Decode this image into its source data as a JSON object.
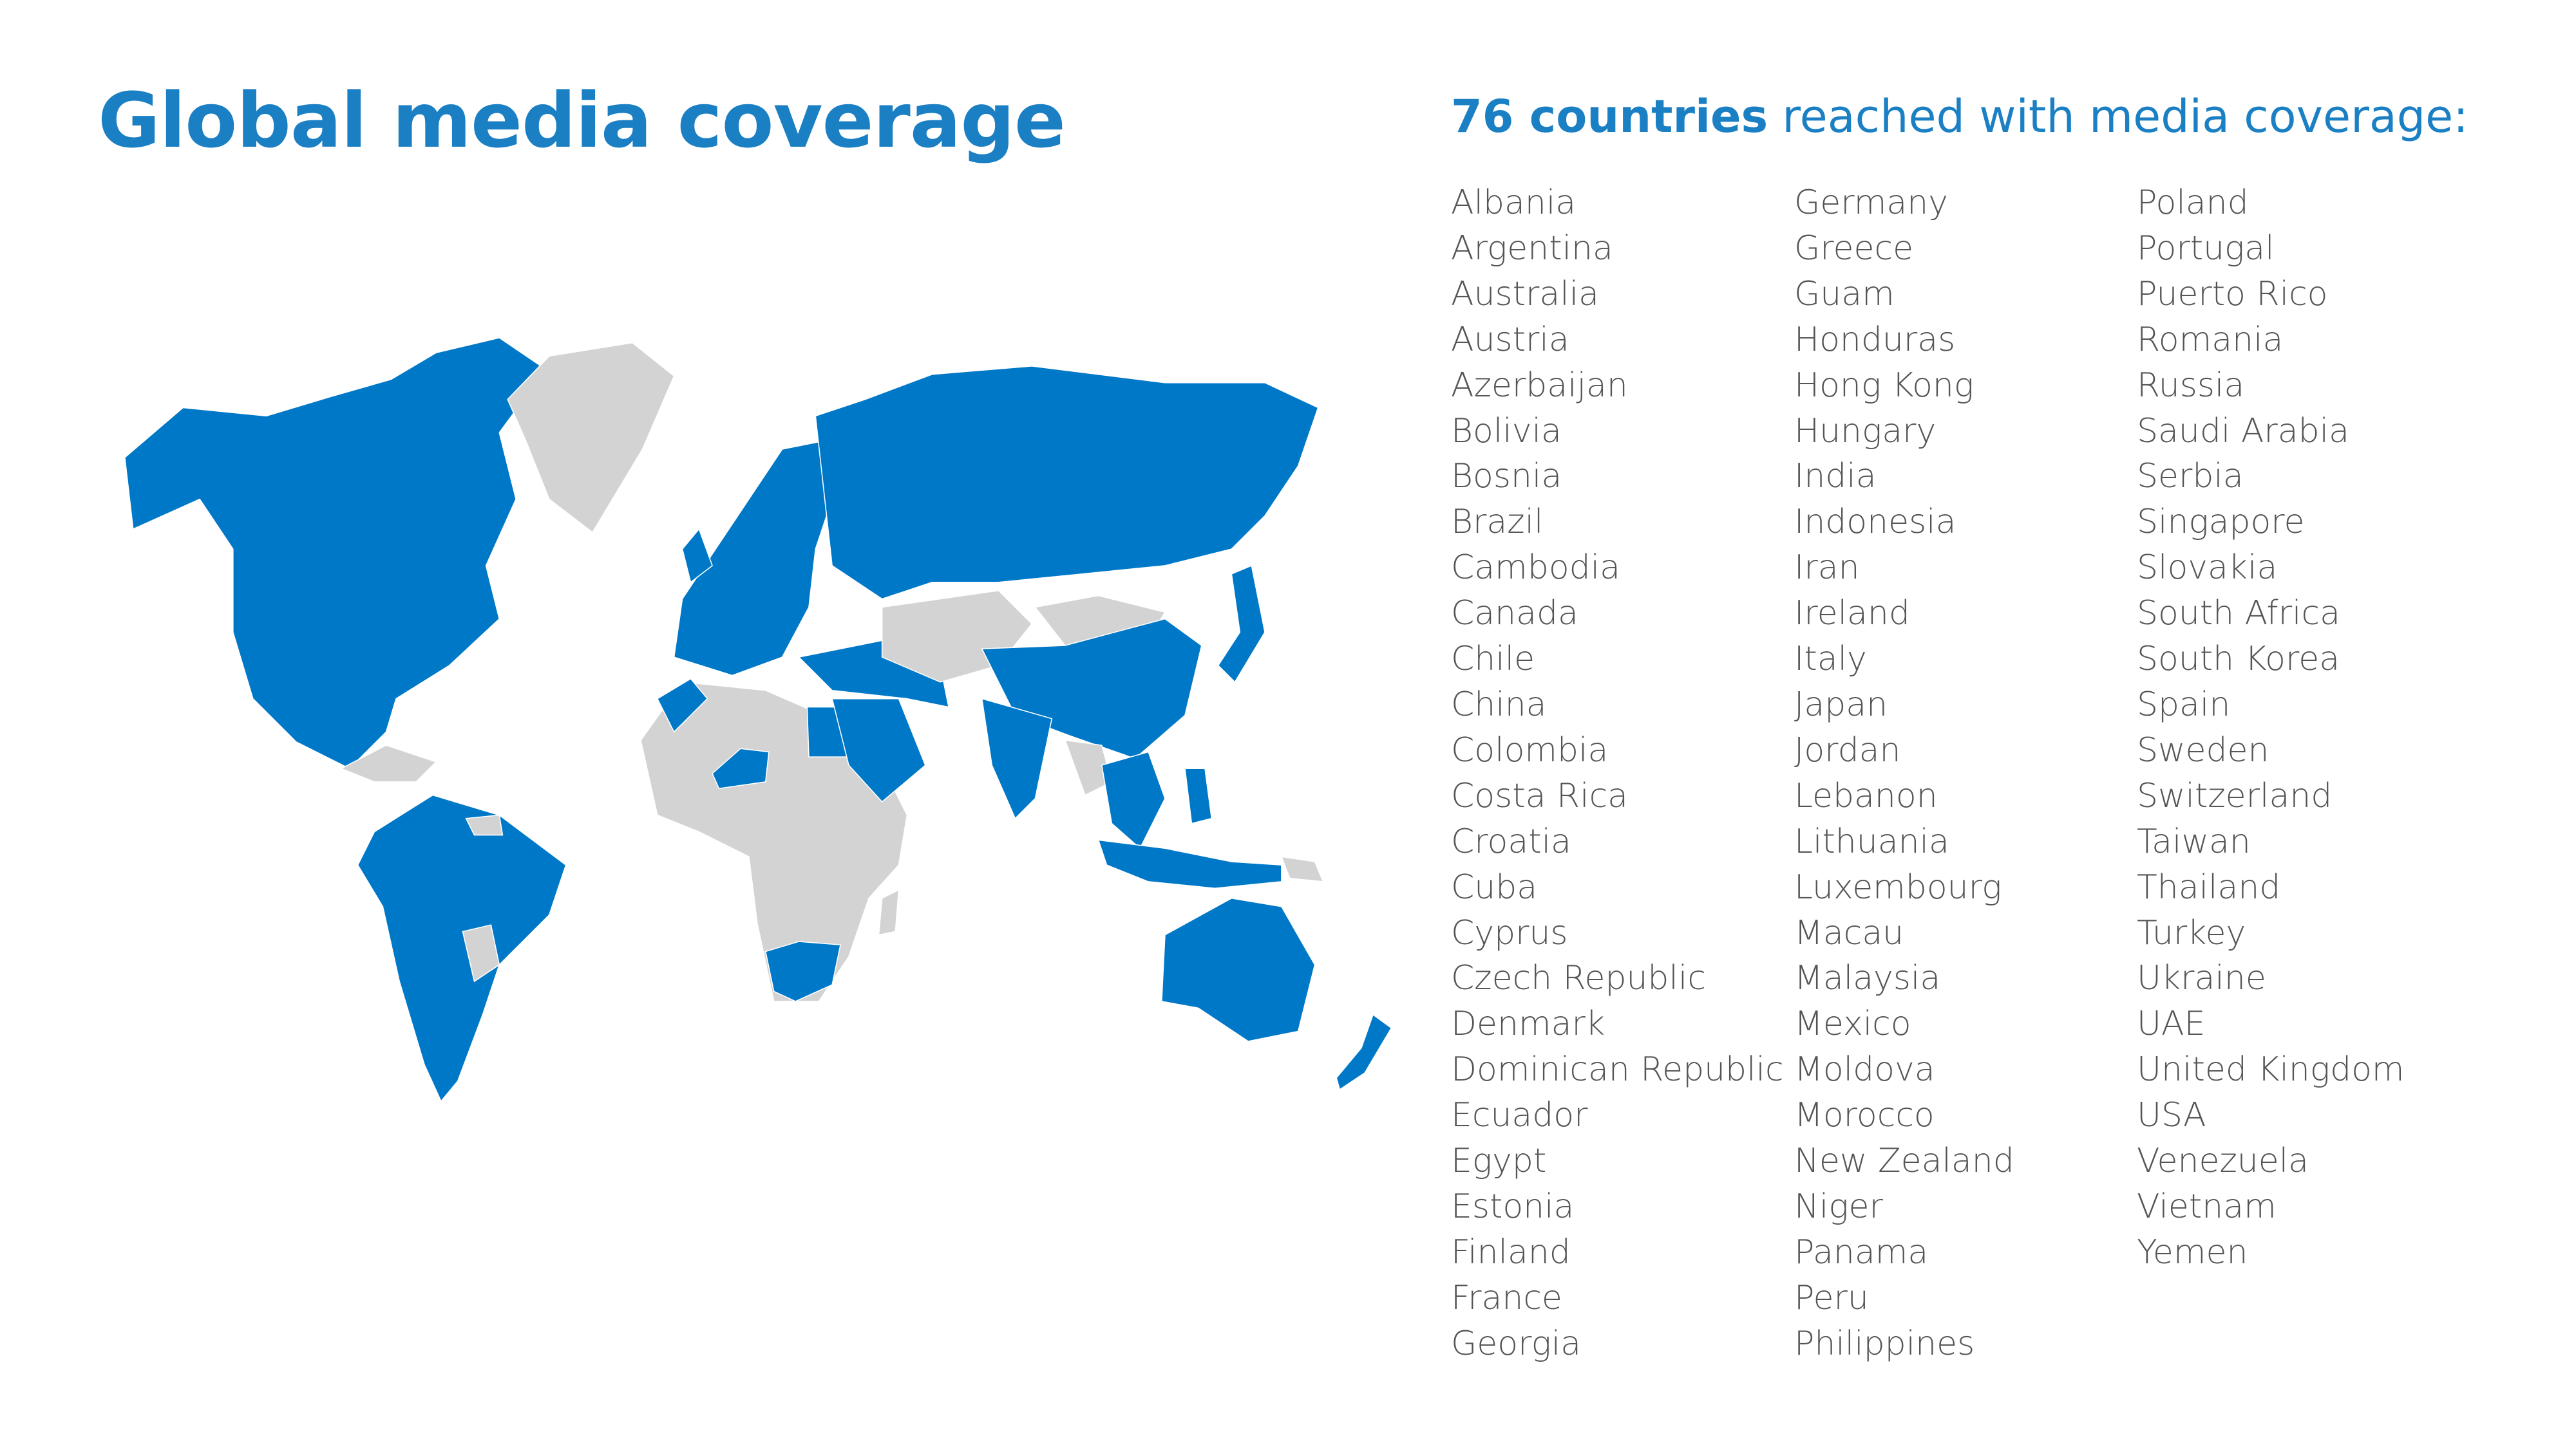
{
  "header": {
    "title": "Global media coverage",
    "subtitle": {
      "highlight": "76 countries",
      "text": "reached with media coverage:"
    }
  },
  "countries": [
    [
      "Albania",
      "Argentina",
      "Australia",
      "Austria",
      "Azerbaijan",
      "Bolivia",
      "Bosnia",
      "Brazil",
      "Cambodia",
      "Canada",
      "Chile",
      "China",
      "Colombia",
      "Costa Rica",
      "Croatia",
      "Cuba",
      "Cyprus",
      "Czech Republic",
      "Denmark",
      "Dominican Republic",
      "Ecuador",
      "Egypt",
      "Estonia",
      "Finland",
      "France",
      "Georgia"
    ],
    [
      "Germany",
      "Greece",
      "Guam",
      "Honduras",
      "Hong Kong",
      "Hungary",
      "India",
      "Indonesia",
      "Iran",
      "Ireland",
      "Italy",
      "Japan",
      "Jordan",
      "Lebanon",
      "Lithuania",
      "Luxembourg",
      "Macau",
      "Malaysia",
      "Mexico",
      "Moldova",
      "Morocco",
      "New Zealand",
      "Niger",
      "Panama",
      "Peru",
      "Philippines"
    ],
    [
      "Poland",
      "Portugal",
      "Puerto Rico",
      "Romania",
      "Russia",
      "Saudi Arabia",
      "Serbia",
      "Singapore",
      "Slovakia",
      "South Africa",
      "South Korea",
      "Spain",
      "Sweden",
      "Switzerland",
      "Taiwan",
      "Thailand",
      "Turkey",
      "Ukraine",
      "UAE",
      "United Kingdom",
      "USA",
      "Venezuela",
      "Vietnam",
      "Yemen"
    ]
  ]
}
